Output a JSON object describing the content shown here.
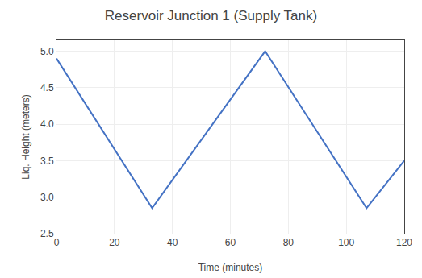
{
  "chart_data": {
    "type": "line",
    "title": "Reservoir Junction 1 (Supply Tank)",
    "xlabel": "Time (minutes)",
    "ylabel": "Liq. Height (meters)",
    "x": [
      0,
      33,
      72,
      107,
      120
    ],
    "values": [
      4.9,
      2.85,
      5.0,
      2.85,
      3.5
    ],
    "color": "#4472C4",
    "xlim": [
      0,
      120
    ],
    "ylim": [
      2.5,
      5.15
    ],
    "xticks": [
      0,
      20,
      40,
      60,
      80,
      100,
      120
    ],
    "yticks": [
      2.5,
      {
        "value": 3.0,
        "label": "3.0"
      },
      3.5,
      {
        "value": 4.0,
        "label": "4.0"
      },
      4.5,
      {
        "value": 5.0,
        "label": "5.0"
      }
    ],
    "grid": true
  }
}
